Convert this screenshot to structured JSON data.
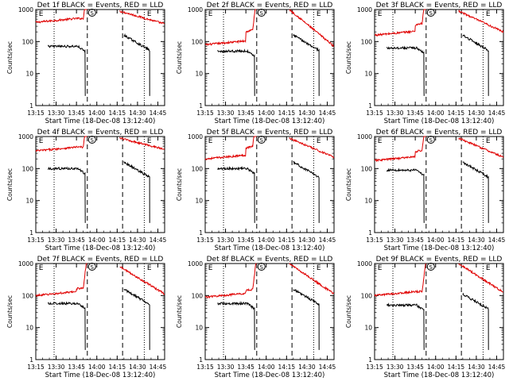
{
  "chart_data": [
    {
      "type": "line",
      "title": "Det 1f BLACK = Events, RED = LLD",
      "xlabel": "Start Time (18-Dec-08 13:12:40)",
      "ylabel": "Counts/sec",
      "yscale": "log",
      "ylim": [
        1,
        1000
      ],
      "xlim": [
        "13:15",
        "14:50"
      ],
      "yticks": [
        "1",
        "10",
        "100",
        "1000"
      ],
      "xticks": [
        "13:15",
        "13:30",
        "13:45",
        "14:00",
        "14:15",
        "14:30",
        "14:45"
      ],
      "markers": {
        "start": "E",
        "sun": "S",
        "end": "E"
      }
    },
    {
      "type": "line",
      "title": "Det 2f BLACK = Events, RED = LLD",
      "xlabel": "Start Time (18-Dec-08 13:12:40)",
      "ylabel": "Counts/sec",
      "yscale": "log",
      "ylim": [
        1,
        1000
      ],
      "xlim": [
        "13:15",
        "14:50"
      ],
      "yticks": [
        "1",
        "10",
        "100",
        "1000"
      ],
      "xticks": [
        "13:15",
        "13:30",
        "13:45",
        "14:00",
        "14:15",
        "14:30",
        "14:45"
      ],
      "markers": {
        "start": "E",
        "sun": "S",
        "end": "E"
      }
    },
    {
      "type": "line",
      "title": "Det 3f BLACK = Events, RED = LLD",
      "xlabel": "Start Time (18-Dec-08 13:12:40)",
      "ylabel": "Counts/sec",
      "yscale": "log",
      "ylim": [
        1,
        1000
      ],
      "xlim": [
        "13:15",
        "14:50"
      ],
      "yticks": [
        "1",
        "10",
        "100",
        "1000"
      ],
      "xticks": [
        "13:15",
        "13:30",
        "13:45",
        "14:00",
        "14:15",
        "14:30",
        "14:45"
      ],
      "markers": {
        "start": "E",
        "sun": "S",
        "end": "E"
      }
    },
    {
      "type": "line",
      "title": "Det 4f BLACK = Events, RED = LLD",
      "xlabel": "Start Time (18-Dec-08 13:12:40)",
      "ylabel": "Counts/sec",
      "yscale": "log",
      "ylim": [
        1,
        1000
      ],
      "xlim": [
        "13:15",
        "14:50"
      ],
      "yticks": [
        "1",
        "10",
        "100",
        "1000"
      ],
      "xticks": [
        "13:15",
        "13:30",
        "13:45",
        "14:00",
        "14:15",
        "14:30",
        "14:45"
      ],
      "markers": {
        "start": "E",
        "sun": "S",
        "end": "E"
      }
    },
    {
      "type": "line",
      "title": "Det 5f BLACK = Events, RED = LLD",
      "xlabel": "Start Time (18-Dec-08 13:12:40)",
      "ylabel": "Counts/sec",
      "yscale": "log",
      "ylim": [
        1,
        1000
      ],
      "xlim": [
        "13:15",
        "14:50"
      ],
      "yticks": [
        "1",
        "10",
        "100",
        "1000"
      ],
      "xticks": [
        "13:15",
        "13:30",
        "13:45",
        "14:00",
        "14:15",
        "14:30",
        "14:45"
      ],
      "markers": {
        "start": "E",
        "sun": "S",
        "end": "E"
      }
    },
    {
      "type": "line",
      "title": "Det 6f BLACK = Events, RED = LLD",
      "xlabel": "Start Time (18-Dec-08 13:12:40)",
      "ylabel": "Counts/sec",
      "yscale": "log",
      "ylim": [
        1,
        1000
      ],
      "xlim": [
        "13:15",
        "14:50"
      ],
      "yticks": [
        "1",
        "10",
        "100",
        "1000"
      ],
      "xticks": [
        "13:15",
        "13:30",
        "13:45",
        "14:00",
        "14:15",
        "14:30",
        "14:45"
      ],
      "markers": {
        "start": "E",
        "sun": "S",
        "end": "E"
      }
    },
    {
      "type": "line",
      "title": "Det 7f BLACK = Events, RED = LLD",
      "xlabel": "Start Time (18-Dec-08 13:12:40)",
      "ylabel": "Counts/sec",
      "yscale": "log",
      "ylim": [
        1,
        1000
      ],
      "xlim": [
        "13:15",
        "14:50"
      ],
      "yticks": [
        "1",
        "10",
        "100",
        "1000"
      ],
      "xticks": [
        "13:15",
        "13:30",
        "13:45",
        "14:00",
        "14:15",
        "14:30",
        "14:45"
      ],
      "markers": {
        "start": "E",
        "sun": "S",
        "end": "E"
      }
    },
    {
      "type": "line",
      "title": "Det 8f BLACK = Events, RED = LLD",
      "xlabel": "Start Time (18-Dec-08 13:12:40)",
      "ylabel": "Counts/sec",
      "yscale": "log",
      "ylim": [
        1,
        1000
      ],
      "xlim": [
        "13:15",
        "14:50"
      ],
      "yticks": [
        "1",
        "10",
        "100",
        "1000"
      ],
      "xticks": [
        "13:15",
        "13:30",
        "13:45",
        "14:00",
        "14:15",
        "14:30",
        "14:45"
      ],
      "markers": {
        "start": "E",
        "sun": "S",
        "end": "E"
      }
    },
    {
      "type": "line",
      "title": "Det 9f BLACK = Events, RED = LLD",
      "xlabel": "Start Time (18-Dec-08 13:12:40)",
      "ylabel": "Counts/sec",
      "yscale": "log",
      "ylim": [
        1,
        1000
      ],
      "xlim": [
        "13:15",
        "14:50"
      ],
      "yticks": [
        "1",
        "10",
        "100",
        "1000"
      ],
      "xticks": [
        "13:15",
        "13:30",
        "13:45",
        "14:00",
        "14:15",
        "14:30",
        "14:45"
      ],
      "markers": {
        "start": "E",
        "sun": "S",
        "end": "E"
      }
    }
  ],
  "colors": {
    "events": "#000000",
    "lld": "#e00000",
    "axes": "#000000",
    "background": "#ffffff"
  }
}
